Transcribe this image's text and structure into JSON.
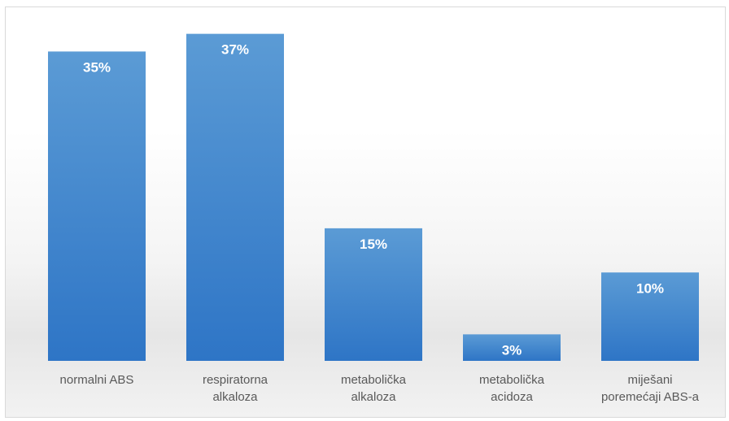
{
  "chart_data": {
    "type": "bar",
    "title": "",
    "xlabel": "",
    "ylabel": "",
    "categories": [
      [
        "normalni ABS"
      ],
      [
        "respiratorna",
        "alkaloza"
      ],
      [
        "metabolička",
        "alkaloza"
      ],
      [
        "metabolička",
        "acidoza"
      ],
      [
        "miješani",
        "poremećaji ABS-a"
      ]
    ],
    "values": [
      35,
      37,
      15,
      3,
      10
    ],
    "data_labels": [
      "35%",
      "37%",
      "15%",
      "3%",
      "10%"
    ],
    "ylim": [
      0,
      40
    ],
    "grid": false,
    "legend": "none",
    "colors": {
      "bar_top": "#5b9bd5",
      "bar_bottom": "#2e75c6",
      "label_text": "#ffffff",
      "category_text": "#595959",
      "border": "#d9d9d9"
    }
  }
}
